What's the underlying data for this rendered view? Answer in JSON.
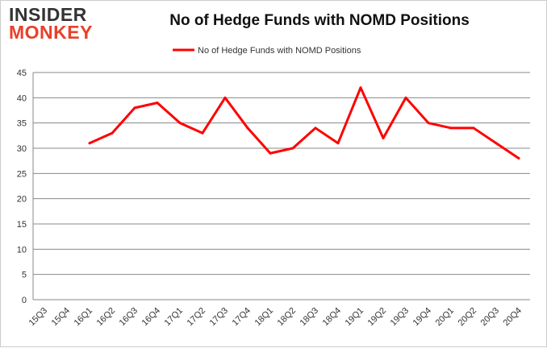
{
  "logo": {
    "line1": "INSIDER",
    "line2": "MONKEY"
  },
  "chart_data": {
    "type": "line",
    "title": "No of Hedge Funds with NOMD Positions",
    "xlabel": "",
    "ylabel": "",
    "categories": [
      "15Q3",
      "15Q4",
      "16Q1",
      "16Q2",
      "16Q3",
      "16Q4",
      "17Q1",
      "17Q2",
      "17Q3",
      "17Q4",
      "18Q1",
      "18Q2",
      "18Q3",
      "18Q4",
      "19Q1",
      "19Q2",
      "19Q3",
      "19Q4",
      "20Q1",
      "20Q2",
      "20Q3",
      "20Q4"
    ],
    "series": [
      {
        "name": "No of Hedge Funds with NOMD Positions",
        "color": "#ff0000",
        "values": [
          null,
          null,
          31,
          33,
          38,
          39,
          35,
          33,
          40,
          34,
          29,
          30,
          34,
          31,
          42,
          32,
          40,
          35,
          34,
          34,
          31,
          28
        ]
      }
    ],
    "ylim": [
      0,
      45
    ],
    "yticks": [
      0,
      5,
      10,
      15,
      20,
      25,
      30,
      35,
      40,
      45
    ],
    "grid": true,
    "legend": "top"
  }
}
